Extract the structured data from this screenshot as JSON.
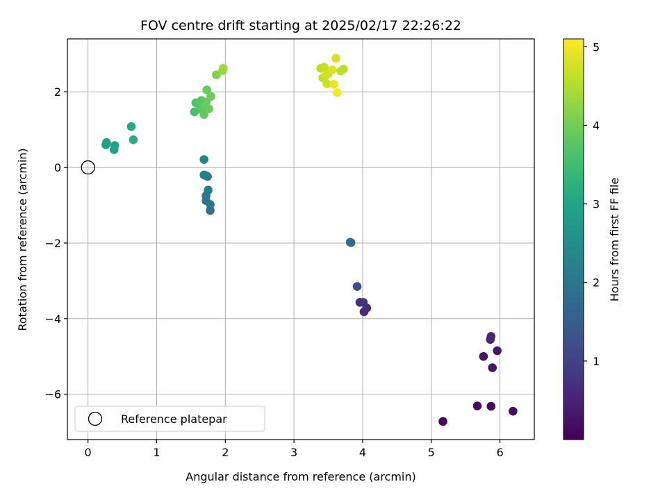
{
  "chart_data": {
    "type": "scatter",
    "title": "FOV centre drift starting at 2025/02/17 22:26:22",
    "xlabel": "Angular distance from reference (arcmin)",
    "ylabel": "Rotation from reference (arcmin)",
    "xlim": [
      -0.3,
      6.5
    ],
    "ylim": [
      -7.2,
      3.4
    ],
    "xticks": [
      0,
      1,
      2,
      3,
      4,
      5,
      6
    ],
    "yticks": [
      -6,
      -4,
      -2,
      0,
      2
    ],
    "grid": true,
    "legend": {
      "position": "lower-left",
      "entries": [
        "Reference platepar"
      ]
    },
    "reference_point": {
      "x": 0,
      "y": 0,
      "marker": "hollow-circle"
    },
    "colorbar": {
      "label": "Hours from first FF file",
      "colormap": "viridis",
      "range": [
        0,
        5.1
      ],
      "ticks": [
        1,
        2,
        3,
        4,
        5
      ]
    },
    "points": [
      {
        "x": 5.17,
        "y": -6.72,
        "c": 0.05
      },
      {
        "x": 5.67,
        "y": -6.31,
        "c": 0.1
      },
      {
        "x": 5.87,
        "y": -6.32,
        "c": 0.12
      },
      {
        "x": 6.19,
        "y": -6.45,
        "c": 0.15
      },
      {
        "x": 5.76,
        "y": -5.0,
        "c": 0.25
      },
      {
        "x": 5.89,
        "y": -5.3,
        "c": 0.28
      },
      {
        "x": 5.96,
        "y": -4.85,
        "c": 0.3
      },
      {
        "x": 5.86,
        "y": -4.55,
        "c": 0.5
      },
      {
        "x": 5.87,
        "y": -4.47,
        "c": 0.55
      },
      {
        "x": 4.02,
        "y": -3.82,
        "c": 0.6
      },
      {
        "x": 4.06,
        "y": -3.72,
        "c": 0.65
      },
      {
        "x": 3.96,
        "y": -3.57,
        "c": 0.7
      },
      {
        "x": 4.01,
        "y": -3.57,
        "c": 0.75
      },
      {
        "x": 3.92,
        "y": -3.15,
        "c": 1.2
      },
      {
        "x": 3.82,
        "y": -1.98,
        "c": 1.75
      },
      {
        "x": 3.83,
        "y": -1.99,
        "c": 1.8
      },
      {
        "x": 1.78,
        "y": -1.14,
        "c": 1.9
      },
      {
        "x": 1.78,
        "y": -0.98,
        "c": 1.95
      },
      {
        "x": 1.72,
        "y": -0.88,
        "c": 2.0
      },
      {
        "x": 1.72,
        "y": -0.75,
        "c": 2.05
      },
      {
        "x": 1.75,
        "y": -0.6,
        "c": 2.1
      },
      {
        "x": 1.74,
        "y": -0.24,
        "c": 2.15
      },
      {
        "x": 1.69,
        "y": -0.2,
        "c": 2.2
      },
      {
        "x": 1.71,
        "y": -0.21,
        "c": 2.22
      },
      {
        "x": 1.69,
        "y": 0.21,
        "c": 2.3
      },
      {
        "x": 0.26,
        "y": 0.6,
        "c": 2.85
      },
      {
        "x": 0.27,
        "y": 0.66,
        "c": 2.9
      },
      {
        "x": 0.38,
        "y": 0.47,
        "c": 2.95
      },
      {
        "x": 0.39,
        "y": 0.58,
        "c": 3.0
      },
      {
        "x": 0.63,
        "y": 1.08,
        "c": 3.1
      },
      {
        "x": 0.66,
        "y": 0.73,
        "c": 3.15
      },
      {
        "x": 1.55,
        "y": 1.47,
        "c": 3.6
      },
      {
        "x": 1.57,
        "y": 1.71,
        "c": 3.65
      },
      {
        "x": 1.63,
        "y": 1.55,
        "c": 3.7
      },
      {
        "x": 1.65,
        "y": 1.77,
        "c": 3.75
      },
      {
        "x": 1.67,
        "y": 1.5,
        "c": 3.8
      },
      {
        "x": 1.69,
        "y": 1.4,
        "c": 3.82
      },
      {
        "x": 1.7,
        "y": 1.62,
        "c": 3.85
      },
      {
        "x": 1.72,
        "y": 1.73,
        "c": 3.88
      },
      {
        "x": 1.73,
        "y": 2.05,
        "c": 3.9
      },
      {
        "x": 1.76,
        "y": 1.55,
        "c": 3.92
      },
      {
        "x": 1.79,
        "y": 1.88,
        "c": 3.95
      },
      {
        "x": 1.87,
        "y": 2.45,
        "c": 4.1
      },
      {
        "x": 1.96,
        "y": 2.56,
        "c": 4.3
      },
      {
        "x": 1.97,
        "y": 2.62,
        "c": 4.35
      },
      {
        "x": 3.39,
        "y": 2.62,
        "c": 4.6
      },
      {
        "x": 3.44,
        "y": 2.65,
        "c": 4.62
      },
      {
        "x": 3.42,
        "y": 2.37,
        "c": 4.65
      },
      {
        "x": 3.48,
        "y": 2.21,
        "c": 4.7
      },
      {
        "x": 3.5,
        "y": 2.48,
        "c": 4.72
      },
      {
        "x": 3.46,
        "y": 2.42,
        "c": 4.75
      },
      {
        "x": 3.56,
        "y": 2.58,
        "c": 4.85
      },
      {
        "x": 3.61,
        "y": 2.89,
        "c": 4.8
      },
      {
        "x": 3.58,
        "y": 2.2,
        "c": 4.95
      },
      {
        "x": 3.63,
        "y": 1.98,
        "c": 5.05
      },
      {
        "x": 3.68,
        "y": 2.55,
        "c": 4.6
      },
      {
        "x": 3.72,
        "y": 2.6,
        "c": 4.55
      }
    ]
  }
}
